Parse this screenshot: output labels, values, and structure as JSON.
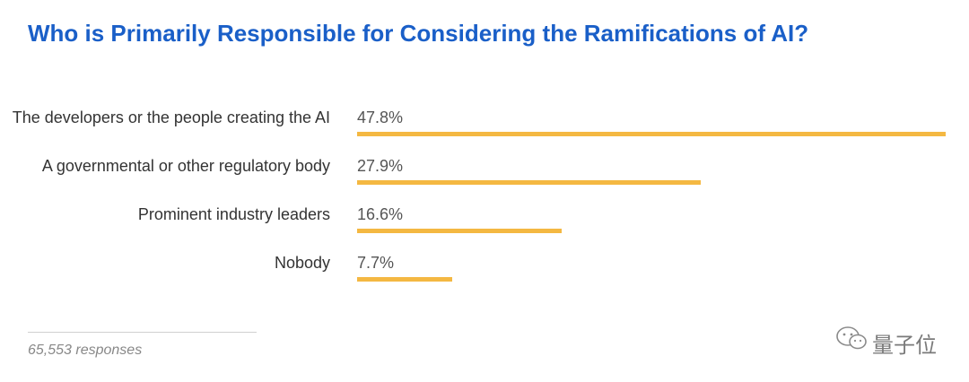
{
  "chart_data": {
    "type": "bar",
    "orientation": "horizontal",
    "title": "Who is Primarily Responsible for Considering the Ramifications of AI?",
    "categories": [
      "The developers or the people creating the AI",
      "A governmental or other regulatory body",
      "Prominent industry leaders",
      "Nobody"
    ],
    "values": [
      47.8,
      27.9,
      16.6,
      7.7
    ],
    "value_labels": [
      "47.8%",
      "27.9%",
      "16.6%",
      "7.7%"
    ],
    "bar_color": "#f4b842",
    "title_color": "#1a5fc8",
    "grid": false,
    "legend": "none"
  },
  "footer": {
    "responses": "65,553 responses"
  },
  "watermark": {
    "text": "量子位",
    "icon": "wechat-icon"
  }
}
